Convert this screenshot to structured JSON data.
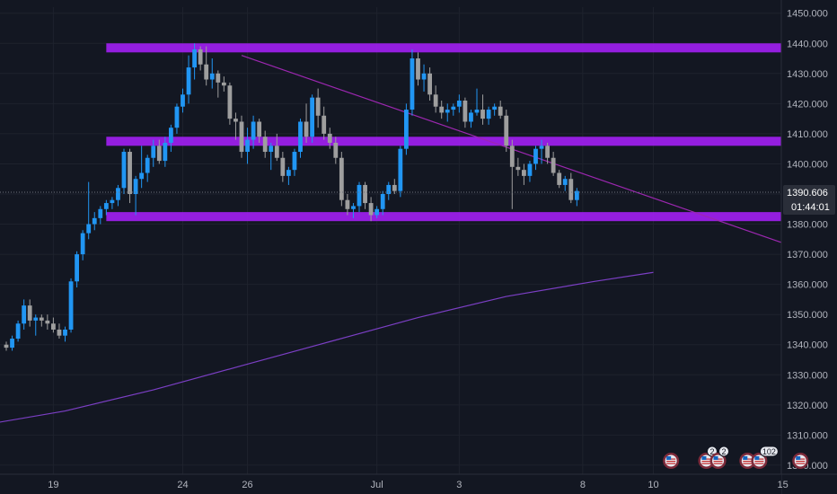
{
  "chart_data": {
    "type": "candlestick",
    "background": "#131722",
    "colors": {
      "up": "#2196f3",
      "down": "#9e9e9e",
      "zone": "#a020f0",
      "trendline": "#9c27b0",
      "moving_average": "#7b3fc4",
      "grid": "#1e222d",
      "axis_text": "#b2b5be",
      "price_tag": "#2a2e39"
    },
    "y_axis": {
      "ticks": [
        "1300.000",
        "1310.000",
        "1320.000",
        "1330.000",
        "1340.000",
        "1350.000",
        "1360.000",
        "1370.000",
        "1380.000",
        "1390.000",
        "1400.000",
        "1410.000",
        "1420.000",
        "1430.000",
        "1440.000",
        "1450.000"
      ],
      "ylim": [
        1297,
        1452
      ]
    },
    "x_axis": {
      "ticks": [
        {
          "label": "19",
          "bar": 8
        },
        {
          "label": "24",
          "bar": 30
        },
        {
          "label": "26",
          "bar": 41
        },
        {
          "label": "Jul",
          "bar": 63
        },
        {
          "label": "3",
          "bar": 77
        },
        {
          "label": "8",
          "bar": 98
        },
        {
          "label": "10",
          "bar": 110
        },
        {
          "label": "15",
          "bar": 132
        }
      ]
    },
    "current_price": {
      "value": "1390.606",
      "countdown": "01:44:01",
      "price": 1390.606
    },
    "candles": [
      [
        1340,
        1341,
        1338,
        1339
      ],
      [
        1339,
        1343,
        1338,
        1342
      ],
      [
        1342,
        1348,
        1341,
        1347
      ],
      [
        1347,
        1355,
        1345,
        1353
      ],
      [
        1353,
        1355,
        1346,
        1348
      ],
      [
        1348,
        1350,
        1343,
        1349
      ],
      [
        1349,
        1350,
        1346,
        1348
      ],
      [
        1348,
        1350,
        1345,
        1347
      ],
      [
        1347,
        1349,
        1344,
        1345
      ],
      [
        1345,
        1347,
        1342,
        1343
      ],
      [
        1343,
        1346,
        1341,
        1345
      ],
      [
        1345,
        1362,
        1344,
        1361
      ],
      [
        1361,
        1371,
        1359,
        1370
      ],
      [
        1370,
        1378,
        1368,
        1377
      ],
      [
        1377,
        1394,
        1375,
        1380
      ],
      [
        1380,
        1384,
        1378,
        1382
      ],
      [
        1382,
        1386,
        1380,
        1385
      ],
      [
        1385,
        1388,
        1383,
        1387
      ],
      [
        1387,
        1389,
        1385,
        1388
      ],
      [
        1388,
        1393,
        1386,
        1392
      ],
      [
        1392,
        1405,
        1390,
        1404
      ],
      [
        1404,
        1405,
        1387,
        1390
      ],
      [
        1390,
        1396,
        1383,
        1395
      ],
      [
        1395,
        1406,
        1392,
        1397
      ],
      [
        1397,
        1403,
        1394,
        1402
      ],
      [
        1402,
        1408,
        1399,
        1406
      ],
      [
        1406,
        1408,
        1400,
        1401
      ],
      [
        1401,
        1409,
        1399,
        1407
      ],
      [
        1407,
        1413,
        1404,
        1412
      ],
      [
        1412,
        1420,
        1410,
        1419
      ],
      [
        1419,
        1425,
        1417,
        1423
      ],
      [
        1423,
        1436,
        1420,
        1432
      ],
      [
        1432,
        1440,
        1428,
        1438
      ],
      [
        1438,
        1439,
        1431,
        1433
      ],
      [
        1433,
        1439,
        1426,
        1428
      ],
      [
        1428,
        1435,
        1425,
        1430
      ],
      [
        1430,
        1431,
        1422,
        1427
      ],
      [
        1427,
        1429,
        1424,
        1426
      ],
      [
        1426,
        1427,
        1413,
        1415
      ],
      [
        1415,
        1417,
        1408,
        1414
      ],
      [
        1414,
        1416,
        1402,
        1404
      ],
      [
        1404,
        1412,
        1400,
        1408
      ],
      [
        1408,
        1416,
        1405,
        1414
      ],
      [
        1414,
        1415,
        1407,
        1409
      ],
      [
        1409,
        1411,
        1402,
        1404
      ],
      [
        1404,
        1407,
        1398,
        1406
      ],
      [
        1406,
        1410,
        1401,
        1402
      ],
      [
        1402,
        1404,
        1394,
        1396
      ],
      [
        1396,
        1399,
        1393,
        1398
      ],
      [
        1398,
        1405,
        1396,
        1404
      ],
      [
        1404,
        1415,
        1402,
        1414
      ],
      [
        1414,
        1420,
        1407,
        1409
      ],
      [
        1409,
        1423,
        1407,
        1422
      ],
      [
        1422,
        1425,
        1412,
        1416
      ],
      [
        1416,
        1419,
        1408,
        1410
      ],
      [
        1410,
        1412,
        1405,
        1407
      ],
      [
        1407,
        1409,
        1400,
        1402
      ],
      [
        1402,
        1404,
        1386,
        1388
      ],
      [
        1388,
        1390,
        1383,
        1385
      ],
      [
        1385,
        1387,
        1382,
        1386
      ],
      [
        1386,
        1394,
        1384,
        1393
      ],
      [
        1393,
        1394,
        1385,
        1387
      ],
      [
        1387,
        1389,
        1381,
        1383
      ],
      [
        1383,
        1386,
        1382,
        1385
      ],
      [
        1385,
        1391,
        1383,
        1390
      ],
      [
        1390,
        1394,
        1388,
        1393
      ],
      [
        1393,
        1395,
        1390,
        1391
      ],
      [
        1391,
        1406,
        1389,
        1405
      ],
      [
        1405,
        1420,
        1403,
        1418
      ],
      [
        1418,
        1438,
        1416,
        1435
      ],
      [
        1435,
        1437,
        1426,
        1428
      ],
      [
        1428,
        1433,
        1424,
        1430
      ],
      [
        1430,
        1432,
        1421,
        1423
      ],
      [
        1423,
        1426,
        1417,
        1419
      ],
      [
        1419,
        1421,
        1415,
        1417
      ],
      [
        1417,
        1420,
        1414,
        1418
      ],
      [
        1418,
        1420,
        1416,
        1419
      ],
      [
        1419,
        1423,
        1417,
        1421
      ],
      [
        1421,
        1422,
        1412,
        1414
      ],
      [
        1414,
        1418,
        1412,
        1417
      ],
      [
        1417,
        1425,
        1416,
        1418
      ],
      [
        1418,
        1423,
        1413,
        1415
      ],
      [
        1415,
        1419,
        1413,
        1418
      ],
      [
        1418,
        1420,
        1416,
        1419
      ],
      [
        1419,
        1421,
        1415,
        1416
      ],
      [
        1416,
        1418,
        1404,
        1406
      ],
      [
        1406,
        1408,
        1385,
        1399
      ],
      [
        1399,
        1402,
        1396,
        1398
      ],
      [
        1398,
        1400,
        1393,
        1396
      ],
      [
        1396,
        1401,
        1394,
        1400
      ],
      [
        1400,
        1406,
        1398,
        1405
      ],
      [
        1405,
        1408,
        1400,
        1406
      ],
      [
        1406,
        1407,
        1400,
        1402
      ],
      [
        1402,
        1404,
        1396,
        1397
      ],
      [
        1397,
        1398,
        1392,
        1393
      ],
      [
        1393,
        1396,
        1391,
        1395
      ],
      [
        1395,
        1397,
        1387,
        1388
      ],
      [
        1388,
        1392,
        1386,
        1391
      ]
    ],
    "zones": [
      {
        "from_bar": 17,
        "to_bar": 141,
        "low": 1437,
        "high": 1440
      },
      {
        "from_bar": 17,
        "to_bar": 141,
        "low": 1406,
        "high": 1409
      },
      {
        "from_bar": 17,
        "to_bar": 141,
        "low": 1381,
        "high": 1384
      }
    ],
    "trendline": {
      "x1": 40,
      "y1": 1436,
      "x2": 142,
      "y2": 1367
    },
    "moving_average": [
      {
        "bar": -22,
        "value": 1309
      },
      {
        "bar": -5,
        "value": 1313
      },
      {
        "bar": 10,
        "value": 1318
      },
      {
        "bar": 25,
        "value": 1325
      },
      {
        "bar": 40,
        "value": 1333
      },
      {
        "bar": 55,
        "value": 1341
      },
      {
        "bar": 70,
        "value": 1349
      },
      {
        "bar": 85,
        "value": 1356
      },
      {
        "bar": 100,
        "value": 1361
      },
      {
        "bar": 110,
        "value": 1364
      }
    ],
    "events": [
      {
        "bar": 113,
        "badge": ""
      },
      {
        "bar": 119,
        "badge": "2"
      },
      {
        "bar": 121,
        "badge": "2"
      },
      {
        "bar": 126,
        "badge": ""
      },
      {
        "bar": 128,
        "badge": "102"
      },
      {
        "bar": 135,
        "badge": ""
      }
    ]
  }
}
